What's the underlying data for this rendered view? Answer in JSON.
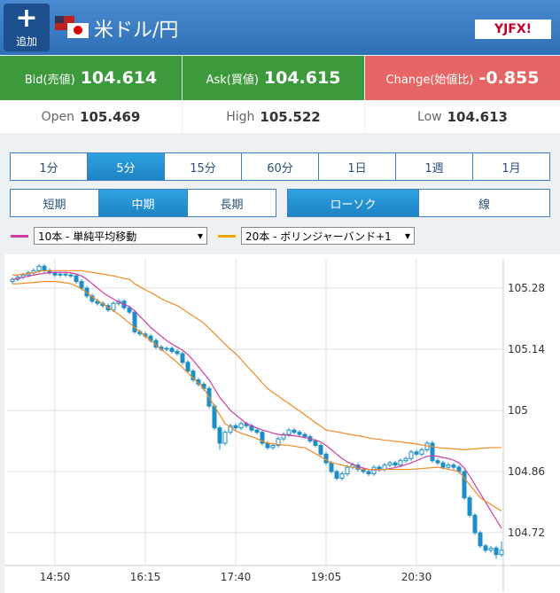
{
  "header": {
    "add_button": "追加",
    "title": "米ドル/円",
    "logo": "YJFX!"
  },
  "quote": {
    "bid_label": "Bid(売値)",
    "bid": "104.614",
    "ask_label": "Ask(買値)",
    "ask": "104.615",
    "change_label": "Change(始値比)",
    "change": "-0.855",
    "open_label": "Open",
    "open": "105.469",
    "high_label": "High",
    "high": "105.522",
    "low_label": "Low",
    "low": "104.613"
  },
  "intervals": [
    "1分",
    "5分",
    "15分",
    "60分",
    "1日",
    "1週",
    "1月"
  ],
  "terms": [
    "短期",
    "中期",
    "長期"
  ],
  "chart_types": [
    "ローソク",
    "線"
  ],
  "chart_data": {
    "type": "candlestick",
    "categories": [
      null,
      null,
      null,
      null,
      null,
      null,
      null,
      null,
      "14:50",
      null,
      null,
      null,
      null,
      null,
      null,
      null,
      null,
      null,
      null,
      null,
      null,
      null,
      null,
      null,
      null,
      "16:15",
      null,
      null,
      null,
      null,
      null,
      null,
      null,
      null,
      null,
      null,
      null,
      null,
      null,
      null,
      null,
      null,
      "17:40",
      null,
      null,
      null,
      null,
      null,
      null,
      null,
      null,
      null,
      null,
      null,
      null,
      null,
      null,
      null,
      null,
      "19:05",
      null,
      null,
      null,
      null,
      null,
      null,
      null,
      null,
      null,
      null,
      null,
      null,
      null,
      null,
      null,
      null,
      "20:30",
      null,
      null,
      null,
      null,
      null,
      null,
      null,
      null,
      null,
      null,
      null,
      null,
      null,
      null,
      null,
      null
    ],
    "open": [
      105.295,
      105.3,
      105.305,
      105.31,
      105.315,
      105.32,
      105.33,
      105.32,
      105.315,
      105.31,
      105.312,
      105.31,
      105.308,
      105.295,
      105.28,
      105.262,
      105.25,
      105.245,
      105.24,
      105.23,
      105.245,
      105.25,
      105.235,
      105.225,
      105.18,
      105.175,
      105.17,
      105.16,
      105.145,
      105.14,
      105.142,
      105.135,
      105.13,
      105.11,
      105.09,
      105.07,
      105.06,
      105.05,
      105.01,
      104.96,
      104.925,
      104.95,
      104.965,
      104.96,
      104.97,
      104.965,
      104.955,
      104.95,
      104.925,
      104.915,
      104.92,
      104.935,
      104.945,
      104.955,
      104.95,
      104.945,
      104.94,
      104.93,
      104.92,
      104.9,
      104.88,
      104.86,
      104.845,
      104.855,
      104.87,
      104.875,
      104.865,
      104.86,
      104.855,
      104.87,
      104.865,
      104.875,
      104.88,
      104.875,
      104.885,
      104.89,
      104.905,
      104.9,
      104.91,
      104.925,
      104.885,
      104.88,
      104.87,
      104.875,
      104.87,
      104.86,
      104.8,
      104.76,
      104.72,
      104.69,
      104.68,
      104.685,
      104.67
    ],
    "high": [
      105.305,
      105.31,
      105.315,
      105.32,
      105.325,
      105.335,
      105.335,
      105.325,
      105.32,
      105.317,
      105.317,
      105.315,
      105.313,
      105.3,
      105.285,
      105.267,
      105.255,
      105.25,
      105.245,
      105.25,
      105.255,
      105.255,
      105.24,
      105.23,
      105.185,
      105.18,
      105.175,
      105.165,
      105.15,
      105.147,
      105.147,
      105.14,
      105.135,
      105.115,
      105.095,
      105.075,
      105.065,
      105.055,
      105.015,
      104.965,
      104.955,
      104.97,
      104.97,
      104.975,
      104.975,
      104.97,
      104.96,
      104.955,
      104.93,
      104.925,
      104.94,
      104.95,
      104.96,
      104.96,
      104.955,
      104.95,
      104.945,
      104.935,
      104.925,
      104.905,
      104.885,
      104.865,
      104.86,
      104.875,
      104.88,
      104.88,
      104.87,
      104.865,
      104.875,
      104.875,
      104.88,
      104.885,
      104.885,
      104.89,
      104.895,
      104.91,
      104.91,
      104.915,
      104.93,
      104.93,
      104.89,
      104.885,
      104.88,
      104.88,
      104.875,
      104.865,
      104.805,
      104.765,
      104.725,
      104.695,
      104.69,
      104.69,
      104.7
    ],
    "low": [
      105.29,
      105.295,
      105.3,
      105.305,
      105.31,
      105.315,
      105.315,
      105.31,
      105.305,
      105.305,
      105.305,
      105.303,
      105.29,
      105.275,
      105.257,
      105.245,
      105.24,
      105.235,
      105.225,
      105.225,
      105.24,
      105.23,
      105.22,
      105.175,
      105.17,
      105.165,
      105.155,
      105.14,
      105.135,
      105.135,
      105.13,
      105.125,
      105.105,
      105.085,
      105.065,
      105.055,
      105.045,
      105.005,
      104.955,
      104.91,
      104.92,
      104.945,
      104.955,
      104.955,
      104.96,
      104.95,
      104.945,
      104.92,
      104.91,
      104.91,
      104.915,
      104.93,
      104.94,
      104.945,
      104.94,
      104.935,
      104.925,
      104.915,
      104.895,
      104.875,
      104.855,
      104.84,
      104.84,
      104.85,
      104.865,
      104.86,
      104.855,
      104.85,
      104.85,
      104.86,
      104.86,
      104.87,
      104.87,
      104.87,
      104.88,
      104.885,
      104.895,
      104.895,
      104.905,
      104.88,
      104.875,
      104.865,
      104.865,
      104.865,
      104.855,
      104.795,
      104.755,
      104.715,
      104.685,
      104.675,
      104.675,
      104.66,
      104.665
    ],
    "close": [
      105.3,
      105.305,
      105.31,
      105.315,
      105.32,
      105.33,
      105.32,
      105.315,
      105.31,
      105.312,
      105.31,
      105.308,
      105.295,
      105.28,
      105.262,
      105.25,
      105.245,
      105.24,
      105.23,
      105.245,
      105.25,
      105.235,
      105.225,
      105.18,
      105.175,
      105.17,
      105.16,
      105.145,
      105.14,
      105.142,
      105.135,
      105.13,
      105.11,
      105.09,
      105.07,
      105.06,
      105.05,
      105.01,
      104.96,
      104.925,
      104.95,
      104.965,
      104.96,
      104.97,
      104.965,
      104.955,
      104.95,
      104.925,
      104.915,
      104.92,
      104.935,
      104.945,
      104.955,
      104.95,
      104.945,
      104.94,
      104.93,
      104.92,
      104.9,
      104.88,
      104.86,
      104.845,
      104.855,
      104.87,
      104.875,
      104.865,
      104.86,
      104.855,
      104.87,
      104.865,
      104.875,
      104.88,
      104.875,
      104.885,
      104.89,
      104.905,
      104.9,
      104.91,
      104.925,
      104.885,
      104.88,
      104.87,
      104.875,
      104.87,
      104.86,
      104.8,
      104.76,
      104.72,
      104.69,
      104.68,
      104.685,
      104.67,
      104.68
    ],
    "candle_color": "#1b8ec8",
    "series": [
      {
        "name": "10本 - 単純平均移動",
        "color": "#d13ca6",
        "values": [
          105.3,
          105.302,
          105.305,
          105.307,
          105.31,
          105.312,
          105.314,
          105.315,
          105.316,
          105.316,
          105.316,
          105.315,
          105.312,
          105.308,
          105.3,
          105.29,
          105.28,
          105.27,
          105.262,
          105.255,
          105.248,
          105.243,
          105.238,
          105.228,
          105.215,
          105.203,
          105.19,
          105.18,
          105.17,
          105.16,
          105.152,
          105.145,
          105.138,
          105.128,
          105.115,
          105.1,
          105.085,
          105.07,
          105.05,
          105.03,
          105.015,
          105,
          104.99,
          104.98,
          104.97,
          104.965,
          104.96,
          104.955,
          104.952,
          104.948,
          104.945,
          104.944,
          104.943,
          104.942,
          104.94,
          104.938,
          104.935,
          104.932,
          104.928,
          104.92,
          104.91,
          104.9,
          104.89,
          104.882,
          104.877,
          104.872,
          104.868,
          104.865,
          104.864,
          104.864,
          104.865,
          104.867,
          104.869,
          104.872,
          104.876,
          104.88,
          104.885,
          104.89,
          104.895,
          104.896,
          104.895,
          104.892,
          104.89,
          104.886,
          104.88,
          104.868,
          104.85,
          104.83,
          104.81,
          104.79,
          104.77,
          104.75,
          104.73
        ]
      },
      {
        "name": "20本 - ボリンジャーバンド+1",
        "color": "#f08a24",
        "upper": [
          105.31,
          105.31,
          105.312,
          105.313,
          105.315,
          105.318,
          105.32,
          105.32,
          105.32,
          105.32,
          105.32,
          105.32,
          105.32,
          105.32,
          105.318,
          105.316,
          105.314,
          105.312,
          105.31,
          105.308,
          105.305,
          105.302,
          105.3,
          105.29,
          105.283,
          105.276,
          105.27,
          105.263,
          105.256,
          105.25,
          105.245,
          105.24,
          105.232,
          105.224,
          105.216,
          105.208,
          105.2,
          105.188,
          105.176,
          105.164,
          105.152,
          105.14,
          105.13,
          105.117,
          105.103,
          105.09,
          105.077,
          105.063,
          105.05,
          105.041,
          105.033,
          105.024,
          105.016,
          105.007,
          104.999,
          104.99,
          104.981,
          104.972,
          104.964,
          104.955,
          104.953,
          104.951,
          104.949,
          104.946,
          104.944,
          104.942,
          104.94,
          104.937,
          104.935,
          104.934,
          104.932,
          104.931,
          104.929,
          104.928,
          104.926,
          104.925,
          104.923,
          104.921,
          104.919,
          104.917,
          104.915,
          104.914,
          104.913,
          104.912,
          104.911,
          104.91,
          104.911,
          104.912,
          104.913,
          104.914,
          104.915,
          104.915,
          104.915
        ],
        "lower": [
          105.29,
          105.29,
          105.291,
          105.292,
          105.293,
          105.294,
          105.295,
          105.295,
          105.295,
          105.294,
          105.292,
          105.29,
          105.285,
          105.278,
          105.27,
          105.26,
          105.252,
          105.244,
          105.236,
          105.228,
          105.22,
          105.21,
          105.2,
          105.19,
          105.18,
          105.17,
          105.16,
          105.15,
          105.14,
          105.13,
          105.12,
          105.11,
          105.098,
          105.086,
          105.074,
          105.062,
          105.05,
          105.03,
          105.01,
          104.99,
          104.97,
          104.962,
          104.953,
          104.948,
          104.944,
          104.94,
          104.935,
          104.93,
          104.925,
          104.924,
          104.922,
          104.921,
          104.92,
          104.918,
          104.916,
          104.915,
          104.908,
          104.901,
          104.894,
          104.887,
          104.88,
          104.878,
          104.875,
          104.872,
          104.87,
          104.867,
          104.865,
          104.865,
          104.865,
          104.865,
          104.865,
          104.865,
          104.865,
          104.865,
          104.865,
          104.865,
          104.866,
          104.867,
          104.868,
          104.869,
          104.87,
          104.868,
          104.865,
          104.863,
          104.86,
          104.845,
          104.83,
          104.815,
          104.8,
          104.792,
          104.785,
          104.777,
          104.77
        ]
      }
    ],
    "ylim": [
      104.645,
      105.347
    ],
    "yticks": [
      105.28,
      105.14,
      105,
      104.86,
      104.72
    ],
    "grid": true
  }
}
